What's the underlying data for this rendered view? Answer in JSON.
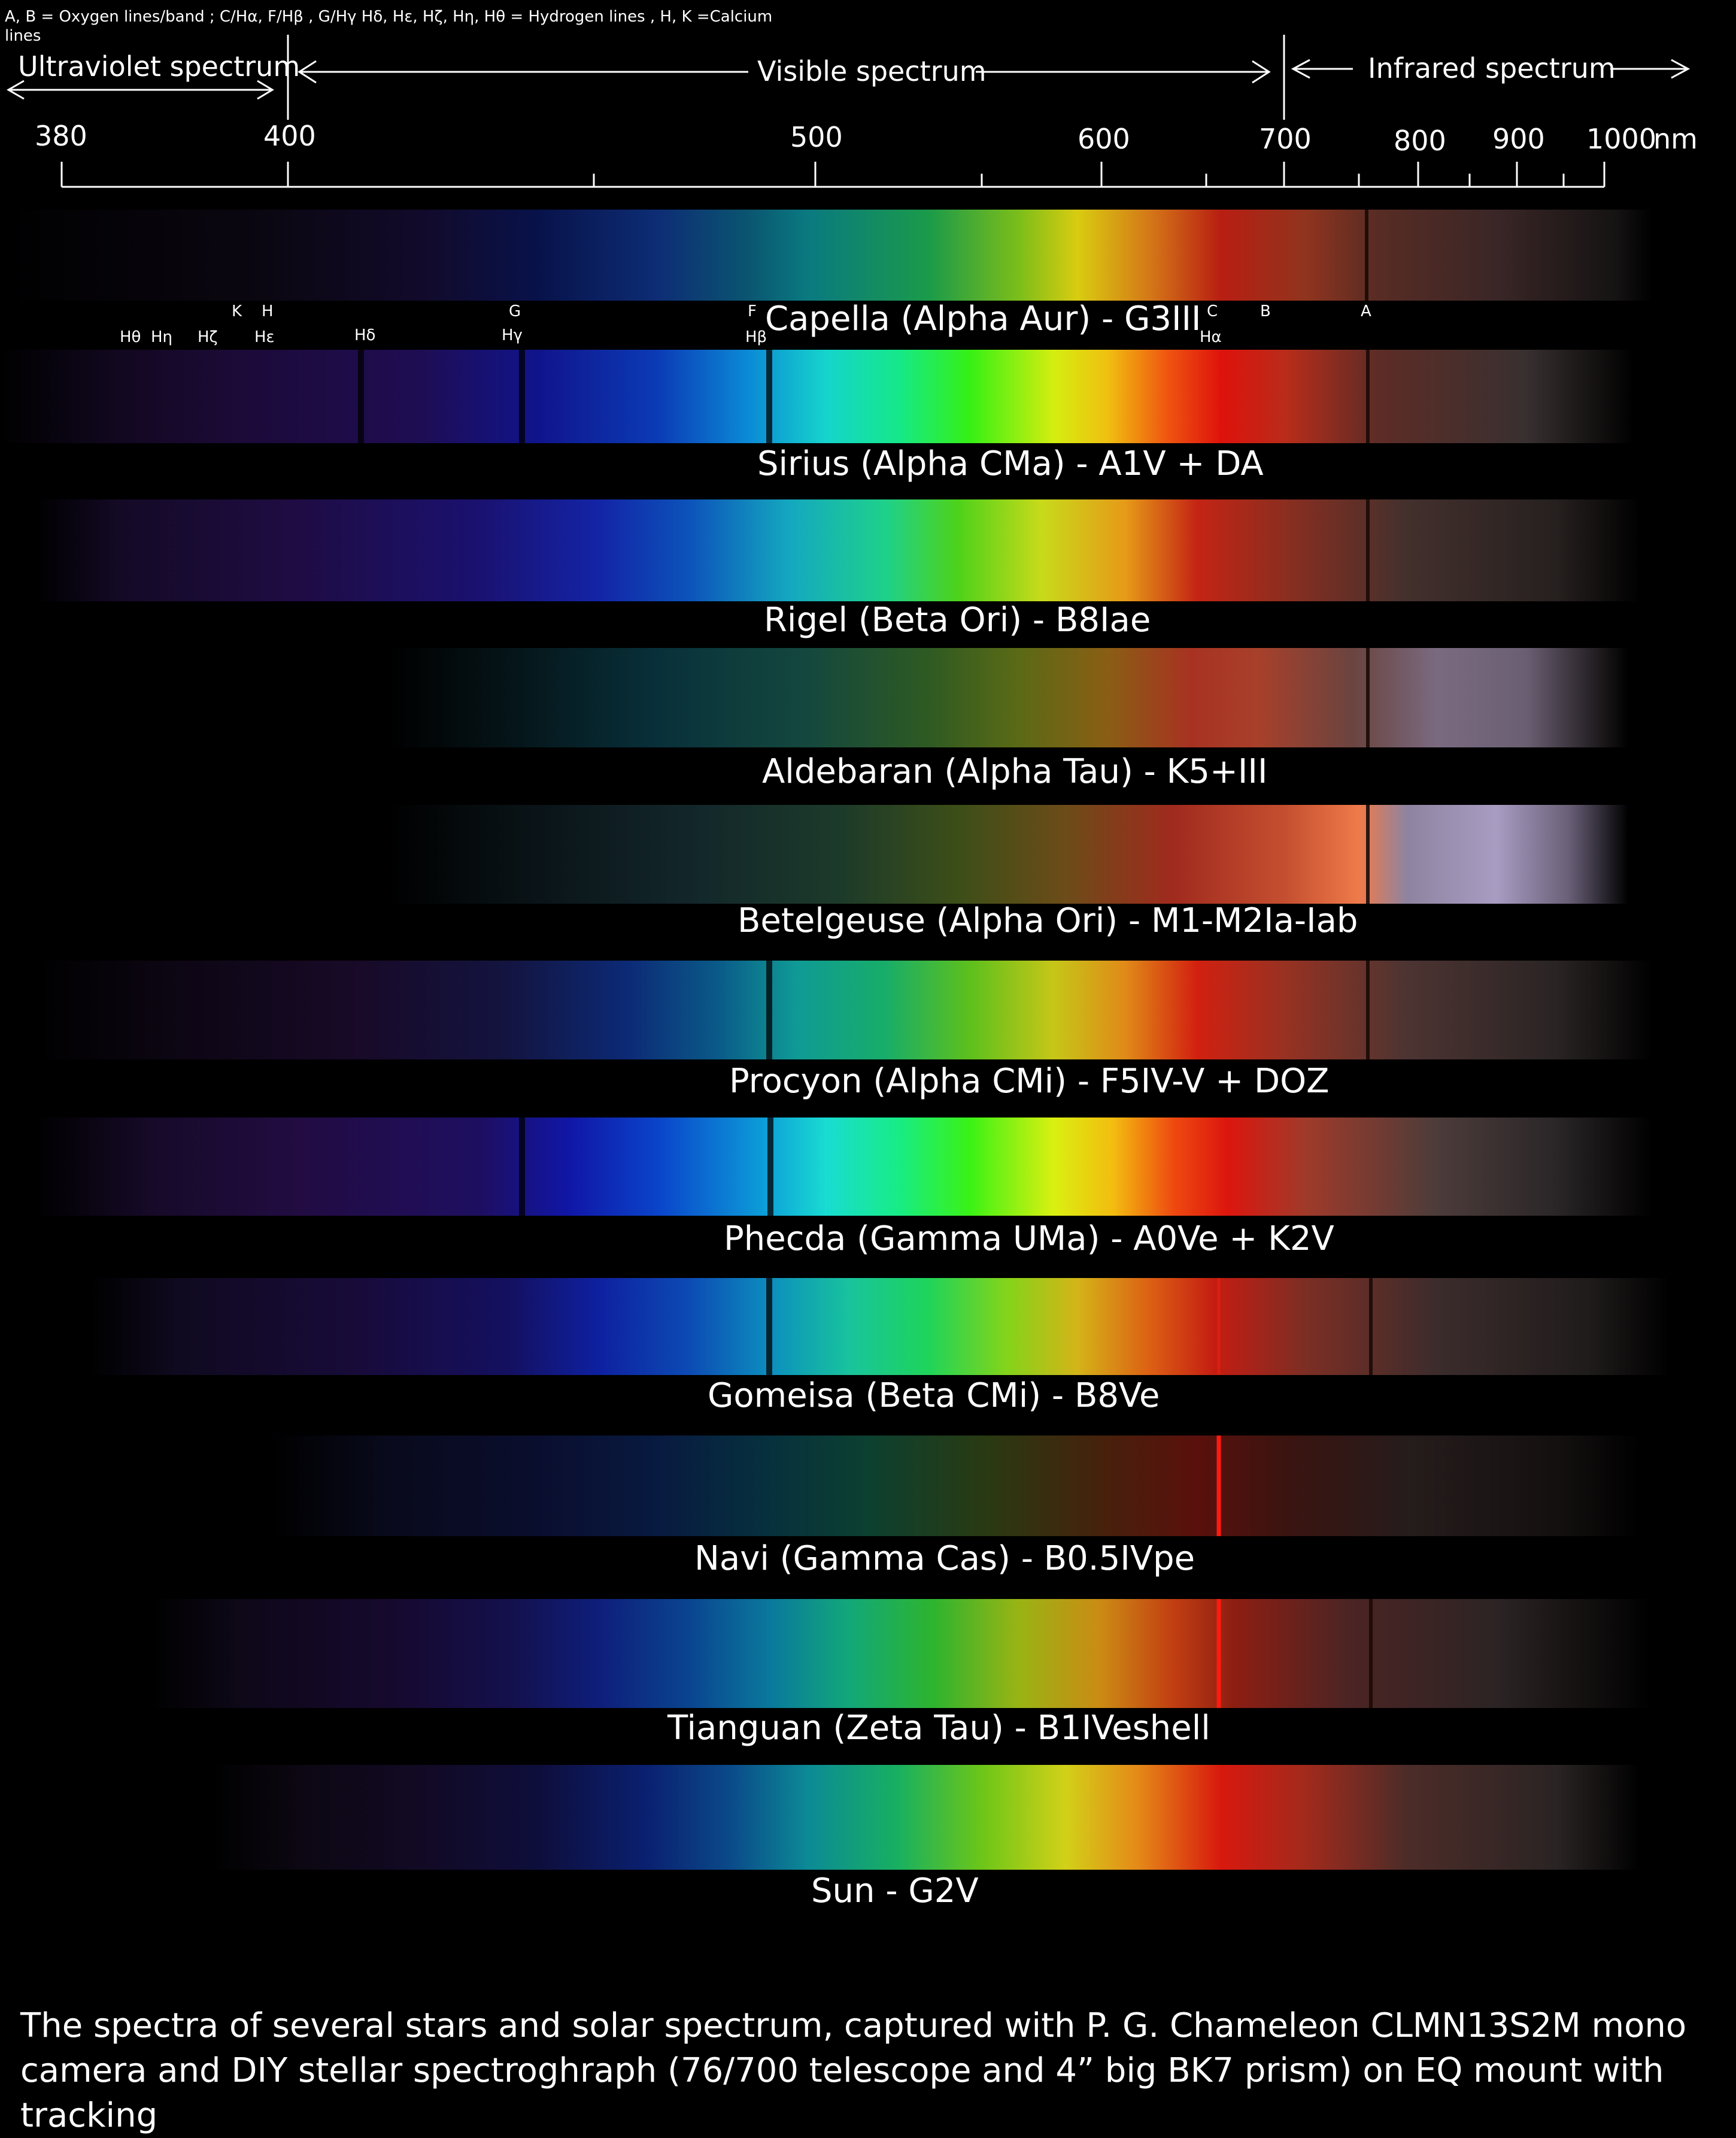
{
  "legend_text": "A, B = Oxygen lines/band ; C/Hα, F/Hβ , G/Hγ Hδ, Hε, Hζ, Hη, Hθ = Hydrogen lines , H, K =Calcium lines",
  "regions": {
    "uv": "Ultraviolet spectrum",
    "visible": "Visible spectrum",
    "ir": "Infrared spectrum"
  },
  "axis": {
    "ticks": [
      "380",
      "400",
      "500",
      "600",
      "700",
      "800",
      "900",
      "1000"
    ],
    "unit": "nm"
  },
  "line_markers": {
    "Htheta": "Hθ",
    "Heta": "Hη",
    "Hzeta": "Hζ",
    "K": "K",
    "H": "H",
    "Hepsilon": "Hε",
    "Hdelta": "Hδ",
    "G": "G",
    "Hgamma": "Hγ",
    "F": "F",
    "Hbeta": "Hβ",
    "C": "C",
    "Halpha": "Hα",
    "B": "B",
    "A": "A"
  },
  "spectra": [
    {
      "label": "Capella (Alpha Aur) - G3III"
    },
    {
      "label": "Sirius (Alpha CMa) - A1V + DA"
    },
    {
      "label": "Rigel (Beta Ori) - B8Iae"
    },
    {
      "label": "Aldebaran (Alpha Tau) - K5+III"
    },
    {
      "label": "Betelgeuse (Alpha Ori) - M1-M2Ia-Iab"
    },
    {
      "label": "Procyon (Alpha CMi) - F5IV-V + DOZ"
    },
    {
      "label": "Phecda (Gamma UMa) - A0Ve + K2V"
    },
    {
      "label": "Gomeisa (Beta CMi) - B8Ve"
    },
    {
      "label": "Navi (Gamma Cas) - B0.5IVpe"
    },
    {
      "label": "Tianguan (Zeta Tau) - B1IVeshell"
    },
    {
      "label": "Sun - G2V"
    }
  ],
  "caption": "The spectra of several stars and solar spectrum, captured with P. G. Chameleon CLMN13S2M mono camera and DIY stellar spectroghraph (76/700 telescope and 4” big BK7 prism) on EQ mount with tracking"
}
